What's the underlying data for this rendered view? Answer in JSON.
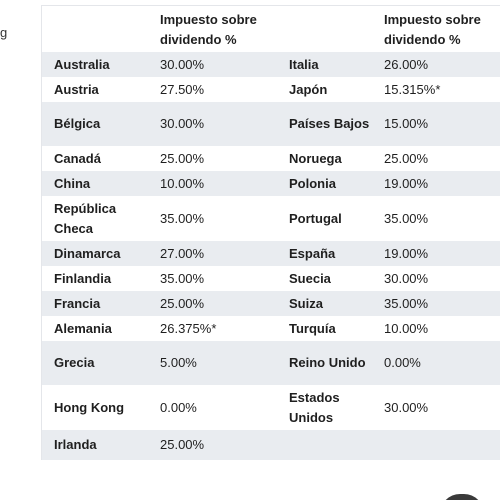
{
  "edge_text": "g",
  "table": {
    "headers": [
      "",
      "Impuesto sobre dividendo %",
      "",
      "Impuesto sobre dividendo %"
    ],
    "rows": [
      {
        "c1": "Australia",
        "r1": "30.00%",
        "c2": "Italia",
        "r2": "26.00%",
        "h": "h25"
      },
      {
        "c1": "Austria",
        "r1": "27.50%",
        "c2": "Japón",
        "r2": "15.315%*",
        "h": "h25"
      },
      {
        "c1": "Bélgica",
        "r1": "30.00%",
        "c2": "Países Bajos",
        "r2": "15.00%",
        "h": "h44"
      },
      {
        "c1": "Canadá",
        "r1": "25.00%",
        "c2": "Noruega",
        "r2": "25.00%",
        "h": "h25"
      },
      {
        "c1": "China",
        "r1": "10.00%",
        "c2": "Polonia",
        "r2": "19.00%",
        "h": "h25"
      },
      {
        "c1": "República Checa",
        "r1": "35.00%",
        "c2": "Portugal",
        "r2": "35.00%",
        "h": "h45"
      },
      {
        "c1": "Dinamarca",
        "r1": "27.00%",
        "c2": "España",
        "r2": "19.00%",
        "h": "h25"
      },
      {
        "c1": "Finlandia",
        "r1": "35.00%",
        "c2": "Suecia",
        "r2": "30.00%",
        "h": "h25"
      },
      {
        "c1": "Francia",
        "r1": "25.00%",
        "c2": "Suiza",
        "r2": "35.00%",
        "h": "h25"
      },
      {
        "c1": "Alemania",
        "r1": "26.375%*",
        "c2": "Turquía",
        "r2": "10.00%",
        "h": "h25"
      },
      {
        "c1": "Grecia",
        "r1": "5.00%",
        "c2": "Reino Unido",
        "r2": "0.00%",
        "h": "h44"
      },
      {
        "c1": "Hong Kong",
        "r1": "0.00%",
        "c2": "Estados Unidos",
        "r2": "30.00%",
        "h": "h45"
      },
      {
        "c1": "Irlanda",
        "r1": "25.00%",
        "c2": "",
        "r2": "",
        "h": "h30"
      }
    ]
  }
}
